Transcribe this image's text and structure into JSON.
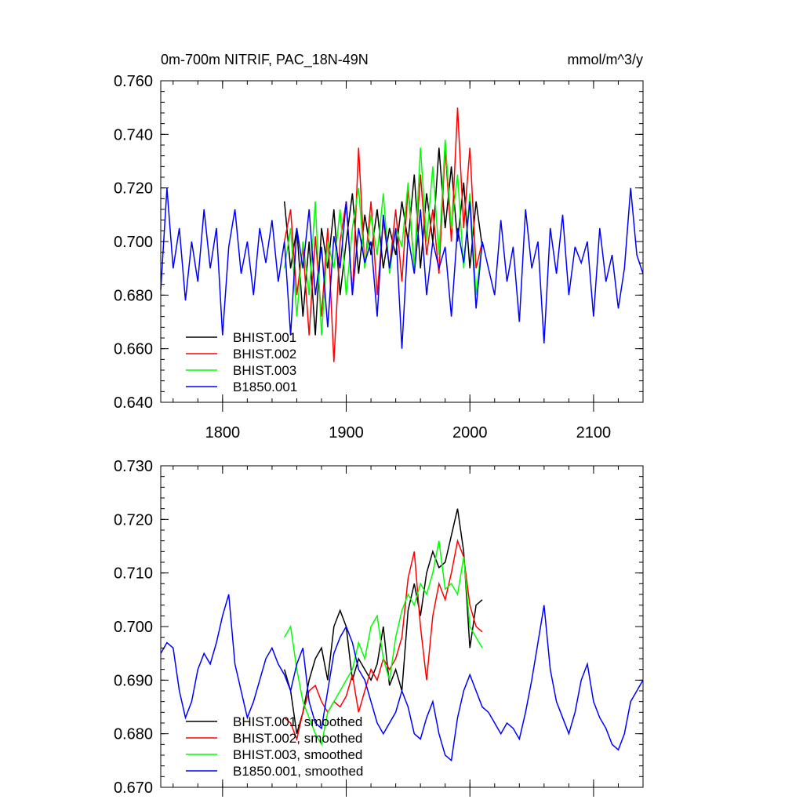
{
  "chart_data": [
    {
      "type": "line",
      "title": "0m-700m NITRIF, PAC_18N-49N",
      "units": "mmol/m^3/y",
      "xlim": [
        1750,
        2140
      ],
      "ylim": [
        0.64,
        0.76
      ],
      "xticks": [
        1800,
        1900,
        2000,
        2100
      ],
      "xtick_labels": [
        "1800",
        "1900",
        "2000",
        "2100"
      ],
      "yticks": [
        0.64,
        0.66,
        0.68,
        0.7,
        0.72,
        0.74,
        0.76
      ],
      "ytick_labels": [
        "0.640",
        "0.660",
        "0.680",
        "0.700",
        "0.720",
        "0.740",
        "0.760"
      ],
      "legend_position": "bottom-left",
      "series": [
        {
          "name": "BHIST.001",
          "color": "#000000",
          "x": [
            1850,
            1855,
            1860,
            1865,
            1870,
            1875,
            1880,
            1885,
            1890,
            1895,
            1900,
            1905,
            1910,
            1915,
            1920,
            1925,
            1930,
            1935,
            1940,
            1945,
            1950,
            1955,
            1960,
            1965,
            1970,
            1975,
            1980,
            1985,
            1990,
            1995,
            2000,
            2005,
            2010
          ],
          "y": [
            0.715,
            0.69,
            0.705,
            0.672,
            0.7,
            0.665,
            0.705,
            0.69,
            0.712,
            0.68,
            0.7,
            0.718,
            0.688,
            0.71,
            0.695,
            0.712,
            0.69,
            0.705,
            0.695,
            0.715,
            0.7,
            0.725,
            0.69,
            0.718,
            0.7,
            0.735,
            0.705,
            0.728,
            0.7,
            0.722,
            0.69,
            0.715,
            0.698
          ]
        },
        {
          "name": "BHIST.002",
          "color": "#ff0000",
          "x": [
            1850,
            1855,
            1860,
            1865,
            1870,
            1875,
            1880,
            1885,
            1890,
            1895,
            1900,
            1905,
            1910,
            1915,
            1920,
            1925,
            1930,
            1935,
            1940,
            1945,
            1950,
            1955,
            1960,
            1965,
            1970,
            1975,
            1980,
            1985,
            1990,
            1995,
            2000,
            2005,
            2010
          ],
          "y": [
            0.7,
            0.712,
            0.68,
            0.698,
            0.665,
            0.702,
            0.672,
            0.705,
            0.655,
            0.7,
            0.715,
            0.68,
            0.735,
            0.69,
            0.715,
            0.68,
            0.708,
            0.69,
            0.712,
            0.685,
            0.72,
            0.69,
            0.725,
            0.695,
            0.712,
            0.688,
            0.735,
            0.7,
            0.75,
            0.705,
            0.735,
            0.69,
            0.7
          ]
        },
        {
          "name": "BHIST.003",
          "color": "#00ff00",
          "x": [
            1850,
            1855,
            1860,
            1865,
            1870,
            1875,
            1880,
            1885,
            1890,
            1895,
            1900,
            1905,
            1910,
            1915,
            1920,
            1925,
            1930,
            1935,
            1940,
            1945,
            1950,
            1955,
            1960,
            1965,
            1970,
            1975,
            1980,
            1985,
            1990,
            1995,
            2000,
            2005,
            2010
          ],
          "y": [
            0.69,
            0.705,
            0.672,
            0.7,
            0.68,
            0.715,
            0.665,
            0.7,
            0.69,
            0.712,
            0.68,
            0.705,
            0.72,
            0.69,
            0.71,
            0.695,
            0.718,
            0.688,
            0.705,
            0.698,
            0.722,
            0.69,
            0.735,
            0.7,
            0.728,
            0.695,
            0.738,
            0.705,
            0.725,
            0.69,
            0.718,
            0.68,
            0.7
          ]
        },
        {
          "name": "B1850.001",
          "color": "#0000ff",
          "x": [
            1750,
            1755,
            1760,
            1765,
            1770,
            1775,
            1780,
            1785,
            1790,
            1795,
            1800,
            1805,
            1810,
            1815,
            1820,
            1825,
            1830,
            1835,
            1840,
            1845,
            1850,
            1855,
            1860,
            1865,
            1870,
            1875,
            1880,
            1885,
            1890,
            1895,
            1900,
            1905,
            1910,
            1915,
            1920,
            1925,
            1930,
            1935,
            1940,
            1945,
            1950,
            1955,
            1960,
            1965,
            1970,
            1975,
            1980,
            1985,
            1990,
            1995,
            2000,
            2005,
            2010,
            2015,
            2020,
            2025,
            2030,
            2035,
            2040,
            2045,
            2050,
            2055,
            2060,
            2065,
            2070,
            2075,
            2080,
            2085,
            2090,
            2095,
            2100,
            2105,
            2110,
            2115,
            2120,
            2125,
            2130,
            2135,
            2140
          ],
          "y": [
            0.682,
            0.72,
            0.69,
            0.705,
            0.678,
            0.7,
            0.685,
            0.712,
            0.69,
            0.705,
            0.665,
            0.698,
            0.712,
            0.688,
            0.7,
            0.68,
            0.705,
            0.692,
            0.708,
            0.685,
            0.7,
            0.665,
            0.705,
            0.69,
            0.712,
            0.68,
            0.698,
            0.668,
            0.702,
            0.69,
            0.715,
            0.68,
            0.705,
            0.692,
            0.7,
            0.672,
            0.71,
            0.69,
            0.705,
            0.66,
            0.702,
            0.688,
            0.712,
            0.68,
            0.7,
            0.69,
            0.698,
            0.672,
            0.705,
            0.692,
            0.715,
            0.675,
            0.7,
            0.69,
            0.68,
            0.708,
            0.685,
            0.698,
            0.67,
            0.712,
            0.69,
            0.7,
            0.662,
            0.705,
            0.688,
            0.71,
            0.68,
            0.698,
            0.692,
            0.7,
            0.672,
            0.705,
            0.685,
            0.695,
            0.675,
            0.69,
            0.72,
            0.695,
            0.688
          ]
        }
      ]
    },
    {
      "type": "line",
      "xlim": [
        1750,
        2140
      ],
      "ylim": [
        0.67,
        0.73
      ],
      "xticks": [
        1800,
        1900,
        2000,
        2100
      ],
      "yticks": [
        0.67,
        0.68,
        0.69,
        0.7,
        0.71,
        0.72,
        0.73
      ],
      "ytick_labels": [
        "0.670",
        "0.680",
        "0.690",
        "0.700",
        "0.710",
        "0.720",
        "0.730"
      ],
      "legend_position": "bottom-left",
      "series": [
        {
          "name": "BHIST.001, smoothed",
          "color": "#000000",
          "x": [
            1850,
            1855,
            1860,
            1865,
            1870,
            1875,
            1880,
            1885,
            1890,
            1895,
            1900,
            1905,
            1910,
            1915,
            1920,
            1925,
            1930,
            1935,
            1940,
            1945,
            1950,
            1955,
            1960,
            1965,
            1970,
            1975,
            1980,
            1985,
            1990,
            1995,
            2000,
            2005,
            2010
          ],
          "y": [
            0.692,
            0.688,
            0.68,
            0.684,
            0.69,
            0.694,
            0.696,
            0.69,
            0.7,
            0.703,
            0.7,
            0.69,
            0.694,
            0.692,
            0.69,
            0.693,
            0.7,
            0.689,
            0.692,
            0.688,
            0.703,
            0.708,
            0.702,
            0.71,
            0.714,
            0.711,
            0.712,
            0.717,
            0.722,
            0.714,
            0.696,
            0.704,
            0.705
          ]
        },
        {
          "name": "BHIST.002, smoothed",
          "color": "#ff0000",
          "x": [
            1850,
            1855,
            1860,
            1865,
            1870,
            1875,
            1880,
            1885,
            1890,
            1895,
            1900,
            1905,
            1910,
            1915,
            1920,
            1925,
            1930,
            1935,
            1940,
            1945,
            1950,
            1955,
            1960,
            1965,
            1970,
            1975,
            1980,
            1985,
            1990,
            1995,
            2000,
            2005,
            2010
          ],
          "y": [
            0.683,
            0.682,
            0.679,
            0.684,
            0.688,
            0.689,
            0.686,
            0.684,
            0.686,
            0.685,
            0.687,
            0.691,
            0.684,
            0.688,
            0.692,
            0.69,
            0.694,
            0.692,
            0.694,
            0.698,
            0.709,
            0.714,
            0.7,
            0.69,
            0.702,
            0.708,
            0.705,
            0.71,
            0.716,
            0.713,
            0.704,
            0.7,
            0.699
          ]
        },
        {
          "name": "BHIST.003, smoothed",
          "color": "#00ff00",
          "x": [
            1850,
            1855,
            1860,
            1865,
            1870,
            1875,
            1880,
            1885,
            1890,
            1895,
            1900,
            1905,
            1910,
            1915,
            1920,
            1925,
            1930,
            1935,
            1940,
            1945,
            1950,
            1955,
            1960,
            1965,
            1970,
            1975,
            1980,
            1985,
            1990,
            1995,
            2000,
            2005,
            2010
          ],
          "y": [
            0.698,
            0.7,
            0.692,
            0.686,
            0.683,
            0.68,
            0.678,
            0.684,
            0.686,
            0.688,
            0.69,
            0.692,
            0.697,
            0.694,
            0.7,
            0.702,
            0.694,
            0.69,
            0.698,
            0.703,
            0.706,
            0.704,
            0.708,
            0.706,
            0.71,
            0.716,
            0.707,
            0.708,
            0.706,
            0.713,
            0.7,
            0.698,
            0.696
          ]
        },
        {
          "name": "B1850.001, smoothed",
          "color": "#0000ff",
          "x": [
            1750,
            1755,
            1760,
            1765,
            1770,
            1775,
            1780,
            1785,
            1790,
            1795,
            1800,
            1805,
            1810,
            1815,
            1820,
            1825,
            1830,
            1835,
            1840,
            1845,
            1850,
            1855,
            1860,
            1865,
            1870,
            1875,
            1880,
            1885,
            1890,
            1895,
            1900,
            1905,
            1910,
            1915,
            1920,
            1925,
            1930,
            1935,
            1940,
            1945,
            1950,
            1955,
            1960,
            1965,
            1970,
            1975,
            1980,
            1985,
            1990,
            1995,
            2000,
            2005,
            2010,
            2015,
            2020,
            2025,
            2030,
            2035,
            2040,
            2045,
            2050,
            2055,
            2060,
            2065,
            2070,
            2075,
            2080,
            2085,
            2090,
            2095,
            2100,
            2105,
            2110,
            2115,
            2120,
            2125,
            2130,
            2135,
            2140
          ],
          "y": [
            0.695,
            0.697,
            0.696,
            0.688,
            0.683,
            0.686,
            0.692,
            0.695,
            0.693,
            0.697,
            0.702,
            0.706,
            0.693,
            0.688,
            0.683,
            0.686,
            0.69,
            0.694,
            0.696,
            0.693,
            0.691,
            0.688,
            0.693,
            0.696,
            0.686,
            0.682,
            0.681,
            0.688,
            0.695,
            0.698,
            0.7,
            0.697,
            0.692,
            0.69,
            0.686,
            0.682,
            0.68,
            0.682,
            0.684,
            0.688,
            0.685,
            0.68,
            0.679,
            0.683,
            0.686,
            0.68,
            0.676,
            0.675,
            0.683,
            0.688,
            0.691,
            0.688,
            0.685,
            0.684,
            0.682,
            0.68,
            0.682,
            0.681,
            0.679,
            0.684,
            0.69,
            0.697,
            0.704,
            0.692,
            0.686,
            0.683,
            0.68,
            0.684,
            0.69,
            0.693,
            0.686,
            0.683,
            0.681,
            0.678,
            0.677,
            0.68,
            0.686,
            0.688,
            0.69
          ]
        }
      ]
    }
  ]
}
